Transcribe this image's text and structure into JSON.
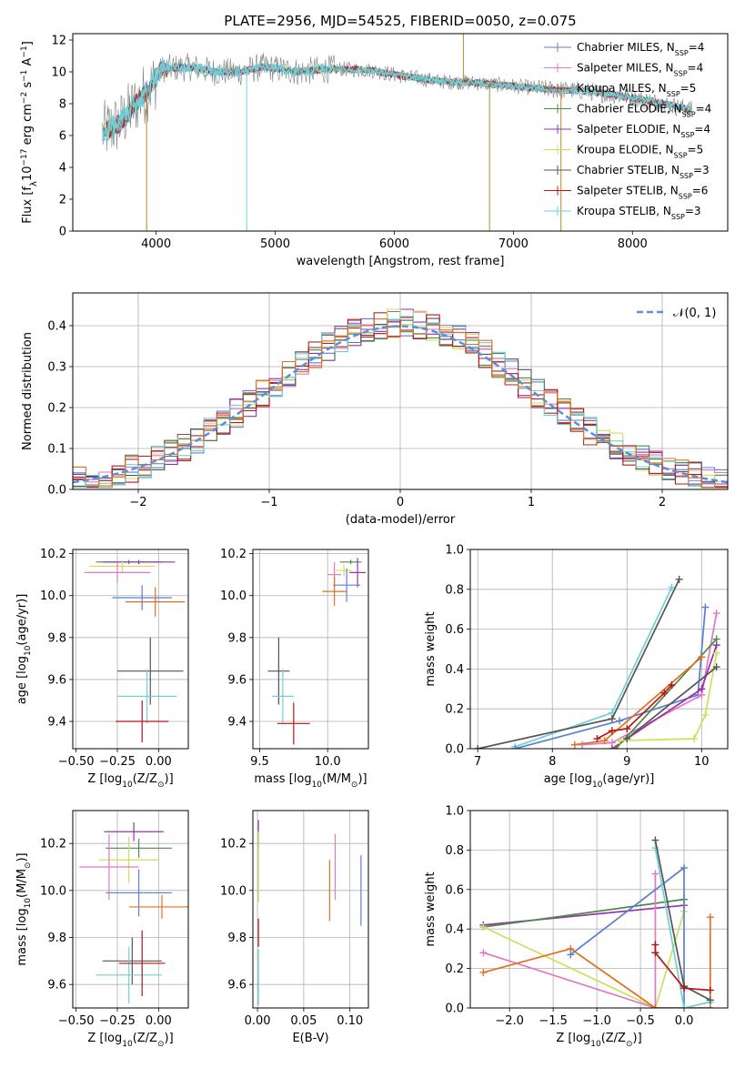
{
  "colors": {
    "chabrier_miles": "#5b7fd4",
    "salpeter_miles": "#e377c2",
    "kroupa_miles": "#a52a2a",
    "chabrier_elodie": "#4a8a4a",
    "salpeter_elodie": "#9932aa",
    "kroupa_elodie": "#e07020",
    "chabrier_stelib": "#555555",
    "salpeter_stelib": "#b81414",
    "kroupa_stelib": "#6fd0d8",
    "yellow_green": "#cde05a",
    "normal_curve": "#5b8fd8",
    "grid": "#b0b0b0"
  },
  "chart_data": [
    {
      "id": "spectrum",
      "type": "line",
      "title": "PLATE=2956, MJD=54525, FIBERID=0050, z=0.075",
      "xlabel": "wavelength [Angstrom, rest frame]",
      "ylabel": "Flux [f_λ10^-17 erg cm^-2 s^-1 A^-1]",
      "xlim": [
        3300,
        8800
      ],
      "ylim": [
        0,
        12.4
      ],
      "xticks": [
        4000,
        5000,
        6000,
        7000,
        8000
      ],
      "yticks": [
        0,
        2,
        4,
        6,
        8,
        10,
        12
      ],
      "grid": false,
      "legend_position": "right",
      "legend": [
        {
          "label": "Chabrier MILES, N",
          "sub": "SSP",
          "eq": "=4",
          "color": "#5b7fd4"
        },
        {
          "label": "Salpeter MILES, N",
          "sub": "SSP",
          "eq": "=4",
          "color": "#e377c2"
        },
        {
          "label": "Kroupa MILES, N",
          "sub": "SSP",
          "eq": "=5",
          "color": "#a52a2a"
        },
        {
          "label": "Chabrier ELODIE, N",
          "sub": "SSP",
          "eq": "=4",
          "color": "#4a8a4a"
        },
        {
          "label": "Salpeter ELODIE, N",
          "sub": "SSP",
          "eq": "=4",
          "color": "#9932aa"
        },
        {
          "label": "Kroupa ELODIE, N",
          "sub": "SSP",
          "eq": "=5",
          "color": "#cde05a"
        },
        {
          "label": "Chabrier STELIB, N",
          "sub": "SSP",
          "eq": "=3",
          "color": "#555555"
        },
        {
          "label": "Salpeter STELIB, N",
          "sub": "SSP",
          "eq": "=6",
          "color": "#b81414"
        },
        {
          "label": "Kroupa STELIB, N",
          "sub": "SSP",
          "eq": "=3",
          "color": "#6fd0d8"
        }
      ],
      "model_trend": {
        "x": [
          3550,
          3700,
          3850,
          3950,
          4050,
          4300,
          4500,
          4700,
          4900,
          5200,
          5500,
          5800,
          6100,
          6400,
          6700,
          7000,
          7300,
          7600,
          7900,
          8200,
          8500
        ],
        "y": [
          6.2,
          6.8,
          8.2,
          9.0,
          10.2,
          10.3,
          10.0,
          10.0,
          10.3,
          10.0,
          10.2,
          10.1,
          9.7,
          9.4,
          9.3,
          9.1,
          8.9,
          8.8,
          8.5,
          8.1,
          7.6
        ]
      },
      "spikes": [
        {
          "x": 3920,
          "y_low": 0
        },
        {
          "x": 4760,
          "y_low": 0
        },
        {
          "x": 6800,
          "y_low": 0
        },
        {
          "x": 7400,
          "y_low": 0
        },
        {
          "x": 6580,
          "y_high": 12.4
        }
      ]
    },
    {
      "id": "residuals",
      "type": "bar",
      "xlabel": "(data-model)/error",
      "ylabel": "Normed distribution",
      "xlim": [
        -2.5,
        2.5
      ],
      "ylim": [
        0,
        0.48
      ],
      "xticks": [
        -2,
        -1,
        0,
        1,
        2
      ],
      "yticks": [
        0.0,
        0.1,
        0.2,
        0.3,
        0.4
      ],
      "grid": true,
      "legend_position": "top-right",
      "legend": [
        {
          "label": "𝒩(0, 1)",
          "style": "dashed"
        }
      ],
      "bins": {
        "start": -2.5,
        "width": 0.1,
        "count": 50
      }
    },
    {
      "id": "age_vs_Z",
      "type": "scatter",
      "xlabel": "Z [log₁₀(Z/Z⊙)]",
      "ylabel": "age  [log₁₀(age/yr)]",
      "xlim": [
        -0.52,
        0.18
      ],
      "ylim": [
        9.27,
        10.22
      ],
      "xticks": [
        -0.5,
        -0.25,
        0.0
      ],
      "xticklabels": [
        "−0.50",
        "−0.25",
        "0.00"
      ],
      "yticks": [
        9.4,
        9.6,
        9.8,
        10.0,
        10.2
      ],
      "grid": true,
      "points": [
        {
          "x": -0.18,
          "xerr": 0.2,
          "y": 10.16,
          "yerr": 0.01,
          "color": "#4a8a4a"
        },
        {
          "x": -0.12,
          "xerr": 0.22,
          "y": 10.16,
          "yerr": 0.01,
          "color": "#9932aa"
        },
        {
          "x": -0.22,
          "xerr": 0.2,
          "y": 10.14,
          "yerr": 0.03,
          "color": "#cde05a"
        },
        {
          "x": -0.25,
          "xerr": 0.2,
          "y": 10.11,
          "yerr": 0.05,
          "color": "#e377c2"
        },
        {
          "x": -0.1,
          "xerr": 0.18,
          "y": 9.99,
          "yerr": 0.06,
          "color": "#5b7fd4"
        },
        {
          "x": -0.02,
          "xerr": 0.18,
          "y": 9.97,
          "yerr": 0.07,
          "color": "#e07020"
        },
        {
          "x": -0.05,
          "xerr": 0.2,
          "y": 9.64,
          "yerr": 0.16,
          "color": "#555555"
        },
        {
          "x": -0.07,
          "xerr": 0.18,
          "y": 9.52,
          "yerr": 0.13,
          "color": "#6fd0d8"
        },
        {
          "x": -0.1,
          "xerr": 0.16,
          "y": 9.4,
          "yerr": 0.1,
          "color": "#b81414"
        }
      ]
    },
    {
      "id": "age_vs_mass",
      "type": "scatter",
      "xlabel": "mass [log₁₀(M/M⊙)]",
      "ylabel": "",
      "xlim": [
        9.45,
        10.3
      ],
      "ylim": [
        9.27,
        10.22
      ],
      "xticks": [
        9.5,
        10.0
      ],
      "xticklabels": [
        "9.5",
        "10.0"
      ],
      "yticks": [
        9.4,
        9.6,
        9.8,
        10.0,
        10.2
      ],
      "grid": true,
      "points": [
        {
          "x": 10.17,
          "xerr": 0.08,
          "y": 10.16,
          "yerr": 0.01,
          "color": "#4a8a4a"
        },
        {
          "x": 10.22,
          "xerr": 0.06,
          "y": 10.11,
          "yerr": 0.07,
          "color": "#9932aa"
        },
        {
          "x": 10.12,
          "xerr": 0.06,
          "y": 10.12,
          "yerr": 0.03,
          "color": "#cde05a"
        },
        {
          "x": 10.05,
          "xerr": 0.05,
          "y": 10.1,
          "yerr": 0.06,
          "color": "#e377c2"
        },
        {
          "x": 10.14,
          "xerr": 0.1,
          "y": 10.05,
          "yerr": 0.08,
          "color": "#5b7fd4"
        },
        {
          "x": 10.05,
          "xerr": 0.09,
          "y": 10.02,
          "yerr": 0.07,
          "color": "#e07020"
        },
        {
          "x": 9.64,
          "xerr": 0.08,
          "y": 9.64,
          "yerr": 0.16,
          "color": "#555555"
        },
        {
          "x": 9.67,
          "xerr": 0.08,
          "y": 9.52,
          "yerr": 0.13,
          "color": "#6fd0d8"
        },
        {
          "x": 9.75,
          "xerr": 0.12,
          "y": 9.39,
          "yerr": 0.1,
          "color": "#b81414"
        }
      ]
    },
    {
      "id": "massweight_vs_age",
      "type": "line",
      "xlabel": "age  [log₁₀(age/yr)]",
      "ylabel": "mass weight",
      "xlim": [
        6.9,
        10.35
      ],
      "ylim": [
        0,
        1.0
      ],
      "xticks": [
        7,
        8,
        9,
        10
      ],
      "yticks": [
        0.0,
        0.2,
        0.4,
        0.6,
        0.8,
        1.0
      ],
      "grid": true,
      "series": [
        {
          "color": "#6fd0d8",
          "x": [
            7.5,
            8.8,
            9.6
          ],
          "y": [
            0.01,
            0.18,
            0.81
          ]
        },
        {
          "color": "#555555",
          "x": [
            7.0,
            8.8,
            9.7
          ],
          "y": [
            0.0,
            0.15,
            0.85
          ]
        },
        {
          "color": "#5b7fd4",
          "x": [
            7.5,
            8.9,
            9.95,
            10.05
          ],
          "y": [
            0.0,
            0.14,
            0.27,
            0.71
          ]
        },
        {
          "color": "#e377c2",
          "x": [
            8.4,
            8.8,
            10.0,
            10.2
          ],
          "y": [
            0.02,
            0.03,
            0.27,
            0.68
          ]
        },
        {
          "color": "#9932aa",
          "x": [
            8.8,
            10.0,
            10.2
          ],
          "y": [
            0.0,
            0.3,
            0.52
          ]
        },
        {
          "color": "#4a8a4a",
          "x": [
            8.85,
            10.2
          ],
          "y": [
            0.0,
            0.55
          ]
        },
        {
          "color": "#cde05a",
          "x": [
            8.9,
            9.9,
            10.05,
            10.2
          ],
          "y": [
            0.04,
            0.05,
            0.17,
            0.48
          ]
        },
        {
          "color": "#e07020",
          "x": [
            8.3,
            8.7,
            10.0
          ],
          "y": [
            0.02,
            0.04,
            0.46
          ]
        },
        {
          "color": "#b81414",
          "x": [
            8.6,
            8.8,
            9.0,
            9.5,
            9.6
          ],
          "y": [
            0.05,
            0.09,
            0.1,
            0.28,
            0.32
          ]
        },
        {
          "color": "#555555",
          "x": [
            9.0,
            10.2
          ],
          "y": [
            0.05,
            0.41
          ]
        }
      ]
    },
    {
      "id": "mass_vs_Z",
      "type": "scatter",
      "xlabel": "Z [log₁₀(Z/Z⊙)]",
      "ylabel": "mass [log₁₀(M/M⊙)]",
      "xlim": [
        -0.52,
        0.18
      ],
      "ylim": [
        9.5,
        10.34
      ],
      "xticks": [
        -0.5,
        -0.25,
        0.0
      ],
      "xticklabels": [
        "−0.50",
        "−0.25",
        "0.00"
      ],
      "yticks": [
        9.6,
        9.8,
        10.0,
        10.2
      ],
      "grid": true,
      "points": [
        {
          "x": -0.15,
          "xerr": 0.18,
          "y": 10.25,
          "yerr": 0.04,
          "color": "#9932aa"
        },
        {
          "x": -0.12,
          "xerr": 0.2,
          "y": 10.18,
          "yerr": 0.04,
          "color": "#4a8a4a"
        },
        {
          "x": -0.18,
          "xerr": 0.18,
          "y": 10.13,
          "yerr": 0.1,
          "color": "#cde05a"
        },
        {
          "x": -0.3,
          "xerr": 0.18,
          "y": 10.1,
          "yerr": 0.14,
          "color": "#e377c2"
        },
        {
          "x": -0.12,
          "xerr": 0.2,
          "y": 9.99,
          "yerr": 0.1,
          "color": "#5b7fd4"
        },
        {
          "x": 0.02,
          "xerr": 0.2,
          "y": 9.93,
          "yerr": 0.05,
          "color": "#e07020"
        },
        {
          "x": -0.16,
          "xerr": 0.18,
          "y": 9.7,
          "yerr": 0.1,
          "color": "#555555"
        },
        {
          "x": -0.18,
          "xerr": 0.2,
          "y": 9.64,
          "yerr": 0.12,
          "color": "#6fd0d8"
        },
        {
          "x": -0.1,
          "xerr": 0.14,
          "y": 9.69,
          "yerr": 0.14,
          "color": "#b81414"
        }
      ]
    },
    {
      "id": "mass_vs_ebv",
      "type": "scatter",
      "xlabel": "E(B-V)",
      "ylabel": "",
      "xlim": [
        -0.005,
        0.12
      ],
      "ylim": [
        9.5,
        10.34
      ],
      "xticks": [
        0.0,
        0.05,
        0.1
      ],
      "xticklabels": [
        "0.00",
        "0.05",
        "0.10"
      ],
      "yticks": [
        9.6,
        9.8,
        10.0,
        10.2
      ],
      "grid": true,
      "points": [
        {
          "x": 0.001,
          "y": 10.24,
          "yerr": 0.06,
          "color": "#9932aa"
        },
        {
          "x": 0.001,
          "y": 10.1,
          "yerr": 0.15,
          "color": "#cde05a"
        },
        {
          "x": 0.001,
          "y": 9.82,
          "yerr": 0.06,
          "color": "#b81414"
        },
        {
          "x": 0.001,
          "y": 9.63,
          "yerr": 0.12,
          "color": "#6fd0d8"
        },
        {
          "x": 0.084,
          "y": 10.1,
          "yerr": 0.14,
          "color": "#e377c2"
        },
        {
          "x": 0.078,
          "y": 10.0,
          "yerr": 0.13,
          "color": "#e07020"
        },
        {
          "x": 0.112,
          "y": 10.0,
          "yerr": 0.15,
          "color": "#5b7fd4"
        }
      ]
    },
    {
      "id": "massweight_vs_Z",
      "type": "line",
      "xlabel": "Z [log₁₀(Z/Z⊙)]",
      "ylabel": "mass weight",
      "xlim": [
        -2.45,
        0.5
      ],
      "ylim": [
        0,
        1.0
      ],
      "xticks": [
        -2.0,
        -1.5,
        -1.0,
        -0.5,
        0.0
      ],
      "xticklabels": [
        "−2.0",
        "−1.5",
        "−1.0",
        "−0.5",
        "0.0"
      ],
      "yticks": [
        0.0,
        0.2,
        0.4,
        0.6,
        0.8,
        1.0
      ],
      "grid": true,
      "series": [
        {
          "color": "#9932aa",
          "x": [
            -2.3,
            0.0
          ],
          "y": [
            0.42,
            0.52
          ]
        },
        {
          "color": "#4a8a4a",
          "x": [
            -2.3,
            0.0
          ],
          "y": [
            0.41,
            0.55
          ]
        },
        {
          "color": "#cde05a",
          "x": [
            -2.3,
            -0.33,
            0.0
          ],
          "y": [
            0.41,
            0.0,
            0.49
          ]
        },
        {
          "color": "#e377c2",
          "x": [
            -2.3,
            -0.33,
            -0.33
          ],
          "y": [
            0.28,
            0.0,
            0.68
          ]
        },
        {
          "color": "#e07020",
          "x": [
            -2.3,
            -1.3,
            -0.33,
            0.3,
            0.3
          ],
          "y": [
            0.18,
            0.3,
            0.0,
            0.0,
            0.46
          ]
        },
        {
          "color": "#5b7fd4",
          "x": [
            -1.3,
            0.0,
            0.0
          ],
          "y": [
            0.27,
            0.71,
            0.0
          ]
        },
        {
          "color": "#6fd0d8",
          "x": [
            -0.33,
            0.0,
            0.3
          ],
          "y": [
            0.81,
            0.0,
            0.03
          ]
        },
        {
          "color": "#555555",
          "x": [
            -0.33,
            0.0,
            0.3
          ],
          "y": [
            0.85,
            0.11,
            0.04
          ]
        },
        {
          "color": "#b81414",
          "x": [
            -0.33,
            -0.33,
            0.0,
            0.3
          ],
          "y": [
            0.32,
            0.28,
            0.1,
            0.09
          ]
        }
      ]
    }
  ]
}
